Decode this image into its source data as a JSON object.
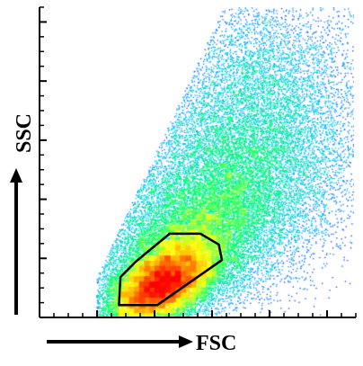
{
  "chart_data": {
    "type": "scatter",
    "style": "flow-cytometry density dot plot",
    "xlabel": "FSC",
    "ylabel": "SSC",
    "axis_arrows": true,
    "grid": false,
    "legend": "none",
    "xlim": [
      0,
      1
    ],
    "ylim": [
      0,
      1
    ],
    "color_scale": [
      "#0000ff",
      "#00bfff",
      "#00ff66",
      "#ffff00",
      "#ff7f00",
      "#ff0000"
    ],
    "population_peak": {
      "x": 0.37,
      "y": 0.09
    },
    "gate": {
      "shape": "polygon",
      "color": "#000000",
      "vertices": [
        [
          0.235,
          0.04
        ],
        [
          0.36,
          0.04
        ],
        [
          0.57,
          0.185
        ],
        [
          0.56,
          0.235
        ],
        [
          0.5,
          0.27
        ],
        [
          0.4,
          0.27
        ],
        [
          0.29,
          0.18
        ],
        [
          0.24,
          0.13
        ]
      ]
    },
    "clusters": [
      {
        "center": [
          0.37,
          0.1
        ],
        "sd": [
          0.1,
          0.055
        ],
        "rot": 0.55,
        "n": 14000
      },
      {
        "center": [
          0.44,
          0.22
        ],
        "sd": [
          0.16,
          0.1
        ],
        "rot": 0.55,
        "n": 10000
      },
      {
        "center": [
          0.58,
          0.42
        ],
        "sd": [
          0.2,
          0.16
        ],
        "rot": 0.65,
        "n": 11000
      },
      {
        "center": [
          0.7,
          0.7
        ],
        "sd": [
          0.17,
          0.2
        ],
        "rot": 0.3,
        "n": 6500
      }
    ]
  }
}
